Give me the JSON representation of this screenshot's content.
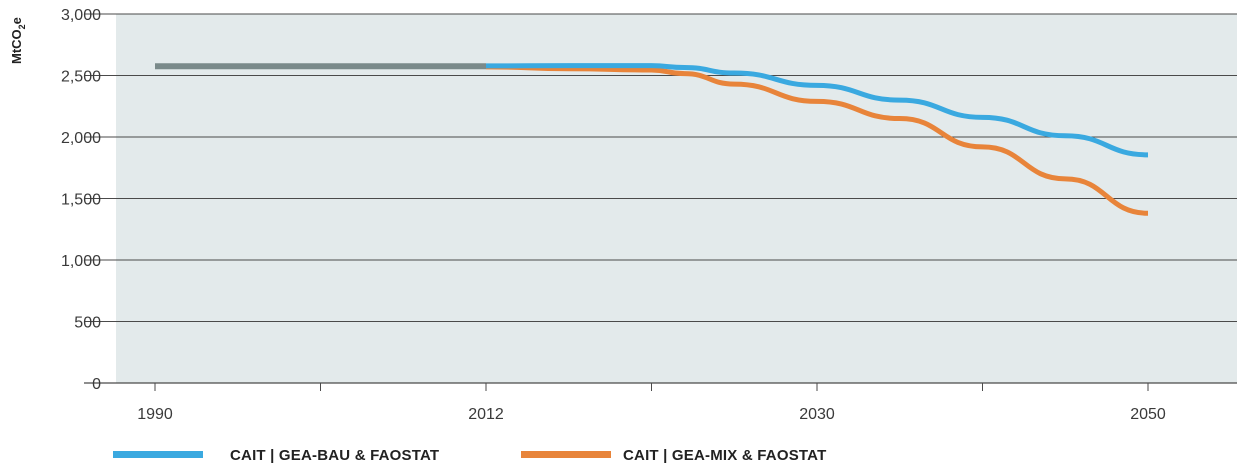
{
  "chart_data": {
    "type": "line",
    "ylabel_main": "MtCO",
    "ylabel_sub": "2",
    "ylabel_tail": "e",
    "xlabel": "",
    "ylim": [
      0,
      3000
    ],
    "y_ticks": [
      0,
      500,
      1000,
      1500,
      2000,
      2500,
      3000
    ],
    "y_tick_labels": [
      "0",
      "500",
      "1,000",
      "1,500",
      "2,000",
      "2,500",
      "3,000"
    ],
    "x_labels": [
      {
        "label": "1990",
        "slot": 0
      },
      {
        "label": "2012",
        "slot": 2
      },
      {
        "label": "2030",
        "slot": 4
      },
      {
        "label": "2050",
        "slot": 6
      }
    ],
    "x_slot_count": 7,
    "grid": "horizontal",
    "legend_position": "bottom",
    "historical": {
      "color": "#7a8a8a",
      "points": [
        [
          0,
          2575
        ],
        [
          2,
          2575
        ]
      ]
    },
    "series": [
      {
        "name": "CAIT | GEA-BAU & FAOSTAT",
        "color": "#3aa9e0",
        "points": [
          [
            2,
            2578
          ],
          [
            2.5,
            2580
          ],
          [
            3,
            2580
          ],
          [
            3.2,
            2565
          ],
          [
            3.5,
            2520
          ],
          [
            4,
            2420
          ],
          [
            4.5,
            2300
          ],
          [
            5,
            2160
          ],
          [
            5.5,
            2010
          ],
          [
            6,
            1855
          ]
        ]
      },
      {
        "name": "CAIT | GEA-MIX & FAOSTAT",
        "color": "#e8843a",
        "points": [
          [
            2,
            2570
          ],
          [
            2.5,
            2555
          ],
          [
            3,
            2545
          ],
          [
            3.2,
            2515
          ],
          [
            3.5,
            2430
          ],
          [
            4,
            2290
          ],
          [
            4.5,
            2150
          ],
          [
            5,
            1920
          ],
          [
            5.5,
            1660
          ],
          [
            6,
            1380
          ]
        ]
      }
    ]
  }
}
